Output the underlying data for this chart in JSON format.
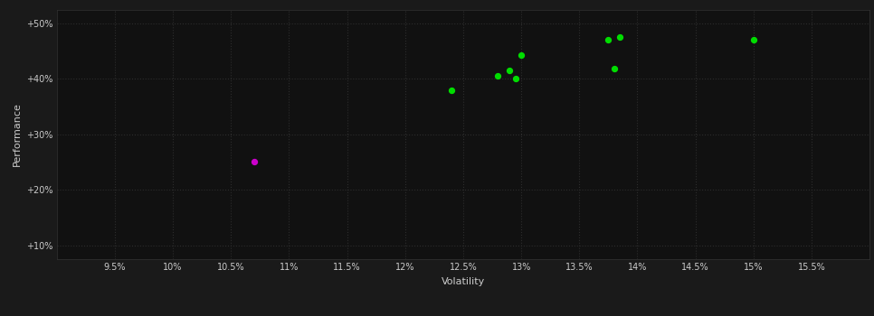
{
  "background_color": "#1a1a1a",
  "plot_bg_color": "#111111",
  "grid_color": "#2d2d2d",
  "text_color": "#cccccc",
  "xlabel": "Volatility",
  "ylabel": "Performance",
  "xlim": [
    0.09,
    0.16
  ],
  "ylim": [
    0.075,
    0.525
  ],
  "xticks": [
    0.095,
    0.1,
    0.105,
    0.11,
    0.115,
    0.12,
    0.125,
    0.13,
    0.135,
    0.14,
    0.145,
    0.15,
    0.155
  ],
  "yticks": [
    0.1,
    0.2,
    0.3,
    0.4,
    0.5
  ],
  "ytick_labels": [
    "+10%",
    "+20%",
    "+30%",
    "+40%",
    "+50%"
  ],
  "xtick_labels": [
    "9.5%",
    "10%",
    "10.5%",
    "11%",
    "11.5%",
    "12%",
    "12.5%",
    "13%",
    "13.5%",
    "14%",
    "14.5%",
    "15%",
    "15.5%"
  ],
  "green_points": [
    [
      0.124,
      0.38
    ],
    [
      0.128,
      0.405
    ],
    [
      0.129,
      0.415
    ],
    [
      0.13,
      0.443
    ],
    [
      0.1295,
      0.4
    ],
    [
      0.138,
      0.418
    ],
    [
      0.1375,
      0.47
    ],
    [
      0.1385,
      0.475
    ],
    [
      0.15,
      0.47
    ]
  ],
  "magenta_points": [
    [
      0.107,
      0.25
    ]
  ],
  "green_color": "#00dd00",
  "magenta_color": "#cc00cc",
  "point_size": 18,
  "font_size_ticks": 7,
  "font_size_label": 8
}
